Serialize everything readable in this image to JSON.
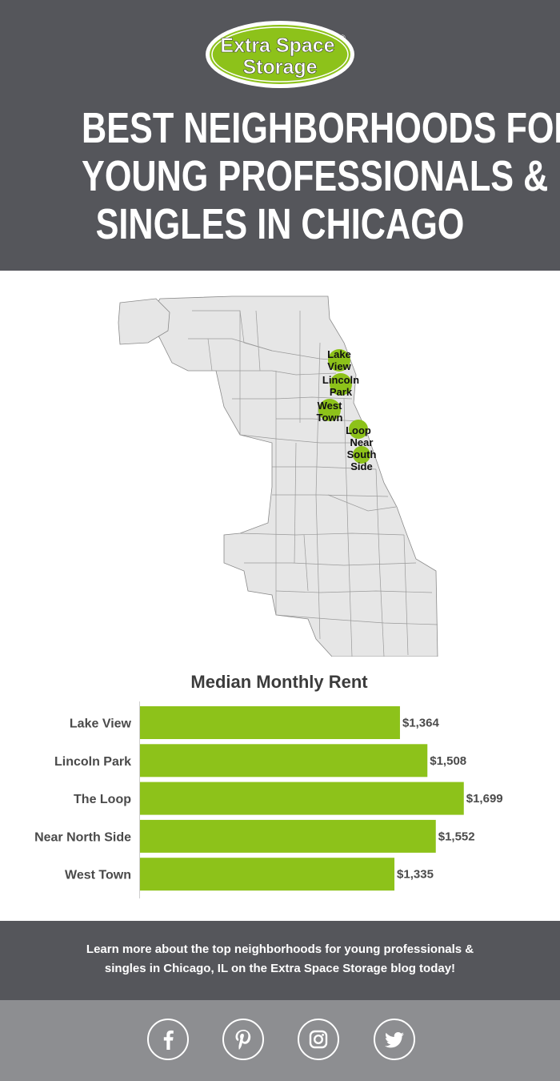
{
  "header": {
    "logo_line1": "Extra Space",
    "logo_line2": "Storage",
    "logo_mark": "®",
    "title_lines": [
      "BEST NEIGHBORHOODS FOR",
      "YOUNG PROFESSIONALS &",
      "SINGLES IN CHICAGO"
    ]
  },
  "map": {
    "markers": [
      {
        "label_lines": [
          "Lake",
          "View"
        ]
      },
      {
        "label_lines": [
          "Lincoln",
          "Park"
        ]
      },
      {
        "label_lines": [
          "West",
          "Town"
        ]
      },
      {
        "label_lines": [
          "Loop"
        ]
      },
      {
        "label_lines": [
          "Near",
          "South",
          "Side"
        ]
      }
    ]
  },
  "chart_data": {
    "type": "bar",
    "orientation": "horizontal",
    "title": "Median Monthly Rent",
    "categories": [
      "Lake View",
      "Lincoln Park",
      "The Loop",
      "Near North Side",
      "West Town"
    ],
    "values": [
      1364,
      1508,
      1699,
      1552,
      1335
    ],
    "data_labels": [
      "$1,364",
      "$1,508",
      "$1,699",
      "$1,552",
      "$1,335"
    ],
    "xlim": [
      0,
      1700
    ],
    "grid": false,
    "bar_color": "#8dc21a"
  },
  "footer": {
    "text_line1": "Learn more about the top neighborhoods for young professionals &",
    "text_line2": "singles in Chicago, IL on the Extra Space Storage blog today!"
  },
  "social": [
    {
      "icon": "facebook-icon"
    },
    {
      "icon": "pinterest-icon"
    },
    {
      "icon": "instagram-icon"
    },
    {
      "icon": "twitter-icon"
    }
  ],
  "colors": {
    "header_bg": "#55565b",
    "accent_green": "#8dc21a",
    "social_bg": "#8d8e91",
    "map_fill": "#e6e6e6",
    "map_stroke": "#8a8a8a"
  }
}
